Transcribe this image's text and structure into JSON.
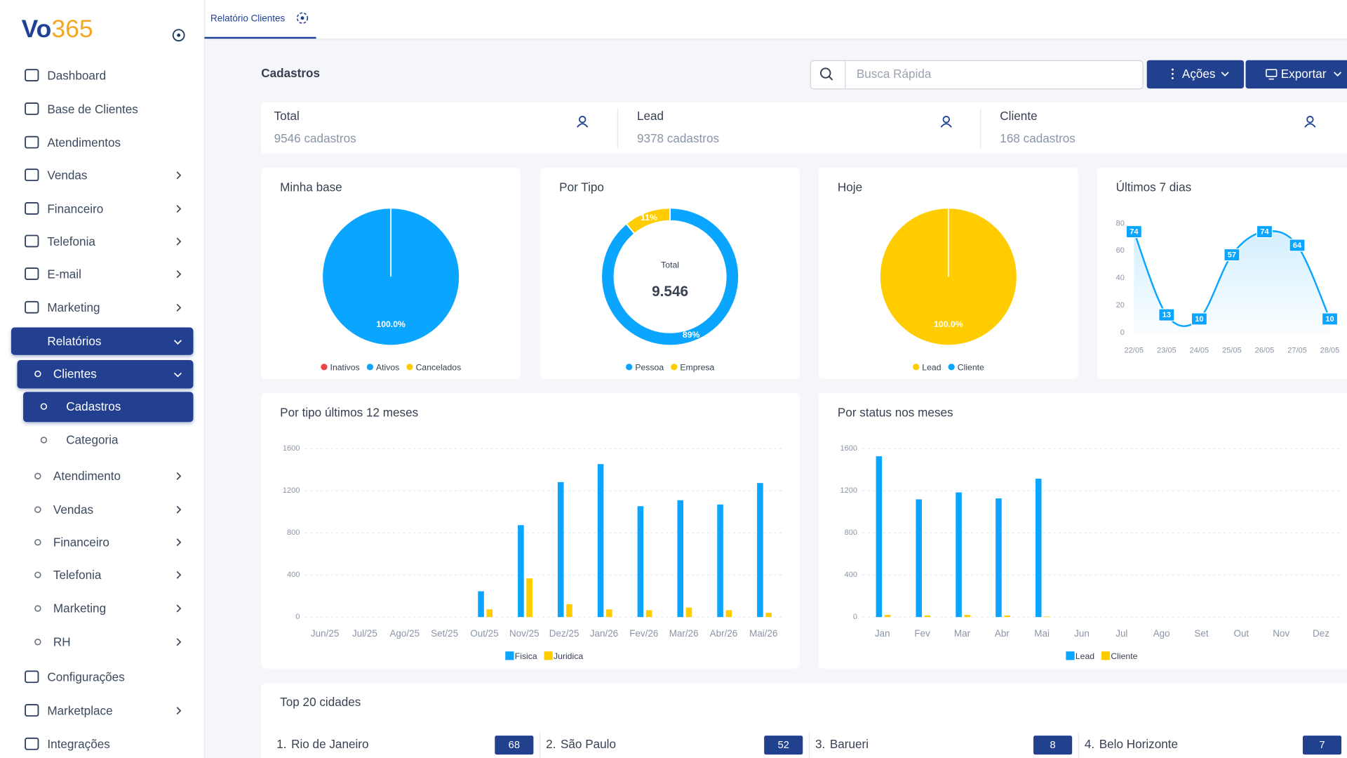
{
  "sidebar": {
    "logo": {
      "main": "Vo",
      "accent": "365"
    },
    "menu": [
      {
        "label": "Dashboard"
      },
      {
        "label": "Base de Clientes"
      },
      {
        "label": "Atendimentos"
      },
      {
        "label": "Vendas"
      },
      {
        "label": "Financeiro"
      },
      {
        "label": "Telefonia"
      },
      {
        "label": "E-mail"
      },
      {
        "label": "Marketing"
      },
      {
        "label": "Relatórios"
      },
      {
        "label": "Clientes"
      },
      {
        "label": "Cadastros"
      },
      {
        "label": "Categoria"
      },
      {
        "label": "Atendimento"
      },
      {
        "label": "Vendas"
      },
      {
        "label": "Financeiro"
      },
      {
        "label": "Telefonia"
      },
      {
        "label": "Marketing"
      },
      {
        "label": "RH"
      },
      {
        "label": "Configurações"
      },
      {
        "label": "Marketplace"
      },
      {
        "label": "Integrações"
      }
    ]
  },
  "tab": {
    "label": "Relatório Clientes"
  },
  "header": {
    "title": "Cadastros",
    "search_placeholder": "Busca Rápida",
    "actions": [
      "Ações",
      "Exportar"
    ]
  },
  "summary": [
    {
      "label": "Total",
      "value": "9546 cadastros"
    },
    {
      "label": "Lead",
      "value": "9378 cadastros"
    },
    {
      "label": "Cliente",
      "value": "168 cadastros"
    }
  ],
  "chart_data": [
    {
      "type": "pie",
      "title": "Minha base",
      "categories": [
        "Inativos",
        "Ativos",
        "Cancelados"
      ],
      "values": [
        0,
        100,
        0
      ],
      "value_labels": [
        null,
        "100.0%",
        null
      ],
      "colors": [
        "#ef4444",
        "#0aa5ff",
        "#ffcc00"
      ]
    },
    {
      "type": "donut",
      "title": "Por Tipo",
      "categories": [
        "Pessoa",
        "Empresa"
      ],
      "values": [
        89,
        11
      ],
      "value_labels": [
        "89%",
        "11%"
      ],
      "colors": [
        "#0aa5ff",
        "#ffcc00"
      ],
      "center_label": "Total",
      "center_value": "9.546"
    },
    {
      "type": "pie",
      "title": "Hoje",
      "categories": [
        "Lead",
        "Cliente"
      ],
      "values": [
        100,
        0
      ],
      "value_labels": [
        "100.0%",
        null
      ],
      "colors": [
        "#ffcc00",
        "#0aa5ff"
      ]
    },
    {
      "type": "line",
      "title": "Últimos 7 dias",
      "x": [
        "22/05",
        "23/05",
        "24/05",
        "25/05",
        "26/05",
        "27/05",
        "28/05"
      ],
      "values": [
        74,
        13,
        10,
        57,
        74,
        64,
        10
      ],
      "color": "#0aa5ff",
      "ylim": [
        0,
        80
      ],
      "yticks": [
        0,
        20,
        40,
        60,
        80
      ],
      "grid": false
    },
    {
      "type": "bar",
      "title": "Por tipo últimos 12 meses",
      "categories": [
        "Jun/25",
        "Jul/25",
        "Ago/25",
        "Set/25",
        "Out/25",
        "Nov/25",
        "Dez/25",
        "Jan/26",
        "Fev/26",
        "Mar/26",
        "Abr/26",
        "Mai/26"
      ],
      "series": [
        {
          "name": "Fisica",
          "color": "#0aa5ff",
          "values": [
            0,
            0,
            0,
            0,
            245,
            873,
            1282,
            1453,
            1053,
            1110,
            1069,
            1273
          ]
        },
        {
          "name": "Juridica",
          "color": "#ffcc00",
          "values": [
            0,
            0,
            0,
            0,
            73,
            367,
            122,
            73,
            65,
            90,
            65,
            41
          ]
        }
      ],
      "ylim": [
        0,
        1600
      ],
      "yticks": [
        0,
        400,
        800,
        1200,
        1600
      ],
      "grid": true
    },
    {
      "type": "bar",
      "title": "Por status nos meses",
      "categories": [
        "Jan",
        "Fev",
        "Mar",
        "Abr",
        "Mai",
        "Jun",
        "Jul",
        "Ago",
        "Set",
        "Out",
        "Nov",
        "Dez"
      ],
      "series": [
        {
          "name": "Lead",
          "color": "#0aa5ff",
          "values": [
            1527,
            1118,
            1184,
            1127,
            1314,
            0,
            0,
            0,
            0,
            0,
            0,
            0
          ]
        },
        {
          "name": "Cliente",
          "color": "#ffcc00",
          "values": [
            20,
            15,
            20,
            15,
            5,
            0,
            0,
            0,
            0,
            0,
            0,
            0
          ]
        }
      ],
      "ylim": [
        0,
        1600
      ],
      "yticks": [
        0,
        400,
        800,
        1200,
        1600
      ],
      "grid": true
    }
  ],
  "top_cities": {
    "title": "Top 20 cidades",
    "rows": [
      {
        "rank": "1.",
        "name": "Rio de Janeiro",
        "count": 68
      },
      {
        "rank": "2.",
        "name": "São Paulo",
        "count": 52
      },
      {
        "rank": "3.",
        "name": "Barueri",
        "count": 8
      },
      {
        "rank": "4.",
        "name": "Belo Horizonte",
        "count": 7
      }
    ]
  }
}
